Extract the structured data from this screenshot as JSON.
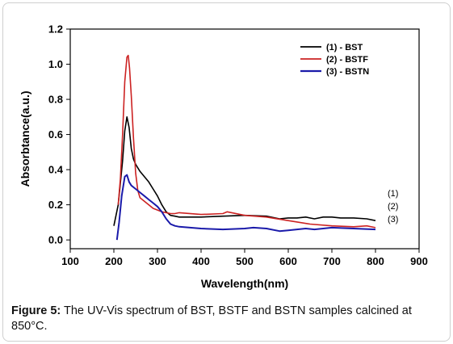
{
  "chart_data": {
    "type": "line",
    "xlabel": "Wavelength(nm)",
    "ylabel": "Absorbtance(a.u.)",
    "xlim": [
      100,
      900
    ],
    "ylim": [
      -0.05,
      1.2
    ],
    "xticks": [
      "100",
      "200",
      "300",
      "400",
      "500",
      "600",
      "700",
      "800",
      "900"
    ],
    "yticks": [
      "0.0",
      "0.2",
      "0.4",
      "0.6",
      "0.8",
      "1.0",
      "1.2"
    ],
    "xtick_values": [
      100,
      200,
      300,
      400,
      500,
      600,
      700,
      800,
      900
    ],
    "ytick_values": [
      0.0,
      0.2,
      0.4,
      0.6,
      0.8,
      1.0,
      1.2
    ],
    "legend_position": "top-right",
    "series": [
      {
        "name": "(1) - BST",
        "end_label": "(1)",
        "color": "#000000",
        "x": [
          200,
          210,
          220,
          225,
          230,
          235,
          240,
          245,
          250,
          260,
          270,
          280,
          290,
          300,
          310,
          320,
          330,
          340,
          350,
          400,
          450,
          500,
          550,
          580,
          600,
          620,
          640,
          660,
          680,
          700,
          720,
          750,
          780,
          800
        ],
        "y": [
          0.08,
          0.2,
          0.45,
          0.62,
          0.7,
          0.64,
          0.52,
          0.46,
          0.43,
          0.39,
          0.36,
          0.33,
          0.29,
          0.25,
          0.2,
          0.16,
          0.14,
          0.135,
          0.13,
          0.13,
          0.135,
          0.14,
          0.135,
          0.12,
          0.125,
          0.125,
          0.13,
          0.12,
          0.13,
          0.13,
          0.125,
          0.125,
          0.12,
          0.11
        ]
      },
      {
        "name": "(2) - BSTF",
        "end_label": "(2)",
        "color": "#cc2222",
        "x": [
          210,
          215,
          220,
          225,
          230,
          233,
          236,
          240,
          245,
          250,
          255,
          260,
          270,
          280,
          290,
          300,
          310,
          320,
          330,
          340,
          350,
          400,
          450,
          460,
          500,
          550,
          600,
          650,
          700,
          750,
          780,
          800
        ],
        "y": [
          0.2,
          0.35,
          0.6,
          0.9,
          1.04,
          1.05,
          0.98,
          0.82,
          0.58,
          0.38,
          0.28,
          0.24,
          0.22,
          0.2,
          0.18,
          0.17,
          0.16,
          0.155,
          0.15,
          0.15,
          0.155,
          0.145,
          0.15,
          0.16,
          0.14,
          0.13,
          0.11,
          0.09,
          0.08,
          0.075,
          0.08,
          0.07
        ]
      },
      {
        "name": "(3) - BSTN",
        "end_label": "(3)",
        "color": "#1a1aaa",
        "x": [
          207,
          212,
          218,
          225,
          230,
          235,
          240,
          250,
          260,
          270,
          280,
          290,
          300,
          310,
          320,
          330,
          340,
          350,
          400,
          450,
          500,
          520,
          550,
          580,
          600,
          640,
          660,
          700,
          750,
          800
        ],
        "y": [
          0.0,
          0.1,
          0.25,
          0.36,
          0.37,
          0.33,
          0.31,
          0.29,
          0.27,
          0.25,
          0.23,
          0.21,
          0.19,
          0.16,
          0.12,
          0.09,
          0.08,
          0.075,
          0.065,
          0.06,
          0.065,
          0.07,
          0.065,
          0.05,
          0.055,
          0.065,
          0.06,
          0.07,
          0.065,
          0.06
        ]
      }
    ]
  },
  "caption": {
    "label": "Figure 5:",
    "text": " The UV-Vis spectrum of BST, BSTF and BSTN samples calcined at 850°C."
  }
}
